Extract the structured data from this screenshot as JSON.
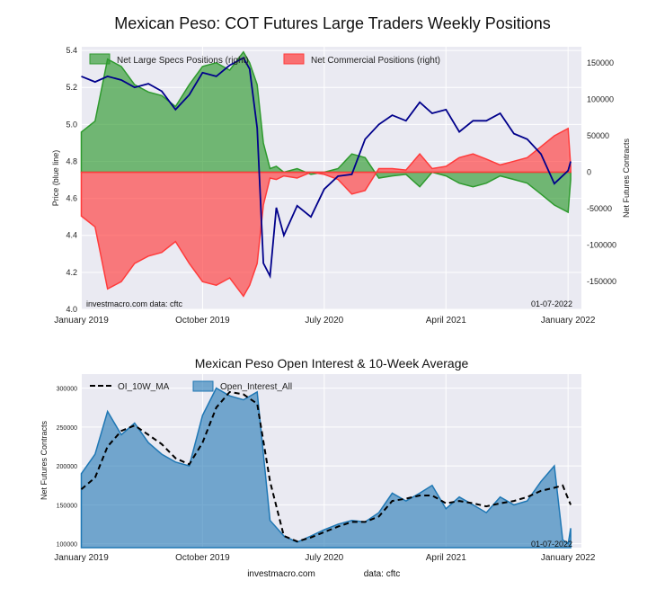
{
  "figure": {
    "title": "Mexican Peso: COT Futures Large Traders Weekly Positions",
    "footer_source": "investmacro.com",
    "footer_data": "data: cftc"
  },
  "chart_data": [
    {
      "type": "area",
      "title": "Mexican Peso: COT Futures Large Traders Weekly Positions",
      "xlabel": "",
      "ylabel": "Price (blue line)",
      "y2label": "Net Futures Contracts",
      "x_ticks": [
        "January 2019",
        "October 2019",
        "July 2020",
        "April 2021",
        "January 2022"
      ],
      "x_range": [
        "2018-12-31",
        "2022-01-31"
      ],
      "y_left_ticks": [
        "4.0",
        "4.2",
        "4.4",
        "4.6",
        "4.8",
        "5.0",
        "5.2",
        "5.4"
      ],
      "y_left_range": [
        4.0,
        5.42
      ],
      "y_right_ticks": [
        "150000",
        "100000",
        "50000",
        "0",
        "-50000",
        "-100000",
        "-150000"
      ],
      "y_right_range": [
        -188000,
        172000
      ],
      "watermark_left": "investmacro.com    data: cftc",
      "watermark_right": "01-07-2022",
      "legend": [
        "Net Large Specs Positions (right)",
        "Net Commercial Positions (right)"
      ],
      "legend_position": "top-left",
      "grid": true,
      "colors": {
        "specs": "#2e9a2e",
        "commercial": "#ff3b3b",
        "price": "#00008b",
        "background": "#eaeaf2"
      },
      "x": [
        "2019-01-01",
        "2019-02-01",
        "2019-03-01",
        "2019-04-01",
        "2019-05-01",
        "2019-06-01",
        "2019-07-01",
        "2019-08-01",
        "2019-09-01",
        "2019-10-01",
        "2019-11-01",
        "2019-12-01",
        "2020-01-01",
        "2020-01-15",
        "2020-02-01",
        "2020-02-15",
        "2020-03-01",
        "2020-03-15",
        "2020-04-01",
        "2020-05-01",
        "2020-06-01",
        "2020-07-01",
        "2020-08-01",
        "2020-09-01",
        "2020-10-01",
        "2020-11-01",
        "2020-12-01",
        "2021-01-01",
        "2021-02-01",
        "2021-03-01",
        "2021-04-01",
        "2021-05-01",
        "2021-06-01",
        "2021-07-01",
        "2021-08-01",
        "2021-09-01",
        "2021-10-01",
        "2021-11-01",
        "2021-12-01",
        "2022-01-01",
        "2022-01-07"
      ],
      "series": [
        {
          "name": "Net Large Specs Positions (right)",
          "values": [
            55000,
            70000,
            155000,
            145000,
            120000,
            110000,
            105000,
            90000,
            120000,
            145000,
            150000,
            140000,
            165000,
            150000,
            120000,
            40000,
            5000,
            8000,
            0,
            5000,
            -3000,
            0,
            5000,
            25000,
            20000,
            -8000,
            -5000,
            -3000,
            -20000,
            0,
            -5000,
            -15000,
            -20000,
            -15000,
            -5000,
            -10000,
            -15000,
            -30000,
            -45000,
            -55000,
            -10000
          ]
        },
        {
          "name": "Net Commercial Positions (right)",
          "values": [
            -60000,
            -75000,
            -160000,
            -150000,
            -125000,
            -115000,
            -110000,
            -95000,
            -125000,
            -150000,
            -155000,
            -145000,
            -170000,
            -155000,
            -125000,
            -45000,
            -8000,
            -10000,
            -5000,
            -8000,
            0,
            -3000,
            -10000,
            -30000,
            -25000,
            5000,
            5000,
            3000,
            25000,
            5000,
            8000,
            20000,
            25000,
            18000,
            10000,
            15000,
            20000,
            35000,
            50000,
            60000,
            8000
          ]
        },
        {
          "name": "Price (blue line)",
          "values": [
            5.26,
            5.23,
            5.26,
            5.24,
            5.2,
            5.22,
            5.18,
            5.08,
            5.16,
            5.28,
            5.26,
            5.32,
            5.36,
            5.3,
            4.98,
            4.25,
            4.18,
            4.55,
            4.4,
            4.56,
            4.5,
            4.65,
            4.72,
            4.73,
            4.92,
            5.0,
            5.05,
            5.02,
            5.12,
            5.06,
            5.08,
            4.96,
            5.02,
            5.02,
            5.06,
            4.95,
            4.92,
            4.84,
            4.68,
            4.75,
            4.8
          ]
        }
      ]
    },
    {
      "type": "area",
      "title": "Mexican Peso Open Interest & 10-Week Average",
      "xlabel": "",
      "ylabel": "Net Futures Contracts",
      "x_ticks": [
        "January 2019",
        "October 2019",
        "July 2020",
        "April 2021",
        "January 2022"
      ],
      "x_range": [
        "2018-12-31",
        "2022-01-31"
      ],
      "y_ticks": [
        "300000",
        "250000",
        "200000",
        "150000",
        "100000"
      ],
      "y_range": [
        95000,
        318000
      ],
      "watermark_right": "01-07-2022",
      "legend": [
        "OI_10W_MA",
        "Open_Interest_All"
      ],
      "legend_position": "top-left",
      "grid": true,
      "colors": {
        "oi": "#1f77b4",
        "ma": "#000000",
        "background": "#eaeaf2"
      },
      "x": [
        "2019-01-01",
        "2019-02-01",
        "2019-03-01",
        "2019-04-01",
        "2019-05-01",
        "2019-06-01",
        "2019-07-01",
        "2019-08-01",
        "2019-09-01",
        "2019-10-01",
        "2019-11-01",
        "2019-12-01",
        "2020-01-01",
        "2020-02-01",
        "2020-03-01",
        "2020-04-01",
        "2020-05-01",
        "2020-06-01",
        "2020-07-01",
        "2020-08-01",
        "2020-09-01",
        "2020-10-01",
        "2020-11-01",
        "2020-12-01",
        "2021-01-01",
        "2021-02-01",
        "2021-03-01",
        "2021-04-01",
        "2021-05-01",
        "2021-06-01",
        "2021-07-01",
        "2021-08-01",
        "2021-09-01",
        "2021-10-01",
        "2021-11-01",
        "2021-12-01",
        "2021-12-20",
        "2022-01-01",
        "2022-01-07"
      ],
      "series": [
        {
          "name": "Open_Interest_All",
          "values": [
            190000,
            215000,
            270000,
            240000,
            255000,
            230000,
            215000,
            205000,
            200000,
            265000,
            300000,
            290000,
            285000,
            295000,
            130000,
            110000,
            102000,
            110000,
            118000,
            125000,
            130000,
            128000,
            140000,
            165000,
            155000,
            165000,
            175000,
            145000,
            160000,
            150000,
            140000,
            160000,
            150000,
            155000,
            180000,
            200000,
            105000,
            100000,
            120000
          ]
        },
        {
          "name": "OI_10W_MA",
          "values": [
            170000,
            185000,
            225000,
            245000,
            252000,
            240000,
            228000,
            210000,
            202000,
            230000,
            275000,
            295000,
            292000,
            280000,
            180000,
            110000,
            103000,
            108000,
            115000,
            122000,
            128000,
            128000,
            135000,
            155000,
            158000,
            162000,
            162000,
            152000,
            155000,
            152000,
            148000,
            152000,
            155000,
            160000,
            168000,
            172000,
            175000,
            158000,
            150000
          ]
        }
      ]
    }
  ]
}
